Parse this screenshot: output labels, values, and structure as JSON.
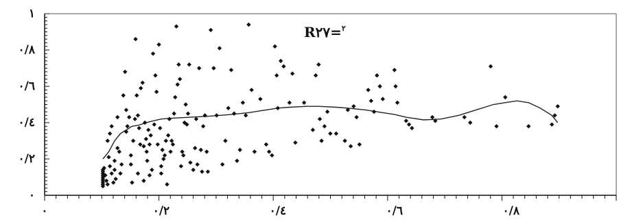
{
  "chart_data": {
    "type": "scatter",
    "title": "",
    "xlabel": "",
    "ylabel": "",
    "xlim": [
      0,
      1
    ],
    "ylim": [
      0,
      1
    ],
    "grid": false,
    "x_ticks": [
      {
        "value": 0,
        "label": "٠"
      },
      {
        "value": 0.2,
        "label": "٠/٢"
      },
      {
        "value": 0.4,
        "label": "٠/٤"
      },
      {
        "value": 0.6,
        "label": "٠/٦"
      },
      {
        "value": 0.8,
        "label": "٠/٨"
      }
    ],
    "y_ticks": [
      {
        "value": 0,
        "label": "٠"
      },
      {
        "value": 0.2,
        "label": "٠/٢"
      },
      {
        "value": 0.4,
        "label": "٠/٤"
      },
      {
        "value": 0.6,
        "label": "٠/٦"
      },
      {
        "value": 0.8,
        "label": "٠/٨"
      },
      {
        "value": 1,
        "label": "١"
      }
    ],
    "annotation": {
      "main": "R",
      "sup": "٢",
      "rest": "=٢٧"
    },
    "colors": {
      "points": "#111111",
      "trend": "#222222",
      "frame": "#555555"
    },
    "points": [
      [
        0.1,
        0.14
      ],
      [
        0.1,
        0.13
      ],
      [
        0.1,
        0.12
      ],
      [
        0.1,
        0.11
      ],
      [
        0.1,
        0.1
      ],
      [
        0.1,
        0.09
      ],
      [
        0.1,
        0.08
      ],
      [
        0.1,
        0.07
      ],
      [
        0.1,
        0.06
      ],
      [
        0.1,
        0.05
      ],
      [
        0.102,
        0.15
      ],
      [
        0.104,
        0.11
      ],
      [
        0.106,
        0.08
      ],
      [
        0.108,
        0.06
      ],
      [
        0.11,
        0.21
      ],
      [
        0.112,
        0.16
      ],
      [
        0.115,
        0.12
      ],
      [
        0.118,
        0.07
      ],
      [
        0.108,
        0.3
      ],
      [
        0.112,
        0.34
      ],
      [
        0.115,
        0.38
      ],
      [
        0.12,
        0.19
      ],
      [
        0.12,
        0.14
      ],
      [
        0.122,
        0.09
      ],
      [
        0.125,
        0.43
      ],
      [
        0.125,
        0.26
      ],
      [
        0.128,
        0.24
      ],
      [
        0.13,
        0.12
      ],
      [
        0.132,
        0.17
      ],
      [
        0.135,
        0.55
      ],
      [
        0.138,
        0.68
      ],
      [
        0.14,
        0.47
      ],
      [
        0.14,
        0.35
      ],
      [
        0.142,
        0.38
      ],
      [
        0.145,
        0.43
      ],
      [
        0.148,
        0.22
      ],
      [
        0.148,
        0.17
      ],
      [
        0.15,
        0.07
      ],
      [
        0.152,
        0.3
      ],
      [
        0.155,
        0.42
      ],
      [
        0.156,
        0.86
      ],
      [
        0.158,
        0.55
      ],
      [
        0.16,
        0.44
      ],
      [
        0.16,
        0.12
      ],
      [
        0.162,
        0.37
      ],
      [
        0.164,
        0.28
      ],
      [
        0.165,
        0.59
      ],
      [
        0.168,
        0.62
      ],
      [
        0.17,
        0.27
      ],
      [
        0.17,
        0.08
      ],
      [
        0.172,
        0.4
      ],
      [
        0.174,
        0.31
      ],
      [
        0.175,
        0.24
      ],
      [
        0.176,
        0.19
      ],
      [
        0.178,
        0.36
      ],
      [
        0.18,
        0.28
      ],
      [
        0.18,
        0.11
      ],
      [
        0.182,
        0.33
      ],
      [
        0.184,
        0.14
      ],
      [
        0.186,
        0.78
      ],
      [
        0.188,
        0.39
      ],
      [
        0.19,
        0.66
      ],
      [
        0.192,
        0.57
      ],
      [
        0.194,
        0.28
      ],
      [
        0.196,
        0.83
      ],
      [
        0.198,
        0.37
      ],
      [
        0.2,
        0.16
      ],
      [
        0.2,
        0.12
      ],
      [
        0.202,
        0.25
      ],
      [
        0.204,
        0.2
      ],
      [
        0.206,
        0.22
      ],
      [
        0.208,
        0.3
      ],
      [
        0.21,
        0.06
      ],
      [
        0.212,
        0.33
      ],
      [
        0.214,
        0.42
      ],
      [
        0.216,
        0.24
      ],
      [
        0.218,
        0.3
      ],
      [
        0.22,
        0.28
      ],
      [
        0.222,
        0.45
      ],
      [
        0.224,
        0.54
      ],
      [
        0.226,
        0.93
      ],
      [
        0.228,
        0.61
      ],
      [
        0.23,
        0.72
      ],
      [
        0.232,
        0.64
      ],
      [
        0.234,
        0.16
      ],
      [
        0.236,
        0.24
      ],
      [
        0.238,
        0.22
      ],
      [
        0.24,
        0.4
      ],
      [
        0.242,
        0.5
      ],
      [
        0.244,
        0.39
      ],
      [
        0.246,
        0.45
      ],
      [
        0.248,
        0.72
      ],
      [
        0.25,
        0.18
      ],
      [
        0.255,
        0.14
      ],
      [
        0.258,
        0.26
      ],
      [
        0.26,
        0.42
      ],
      [
        0.262,
        0.17
      ],
      [
        0.265,
        0.7
      ],
      [
        0.268,
        0.25
      ],
      [
        0.27,
        0.13
      ],
      [
        0.272,
        0.38
      ],
      [
        0.275,
        0.44
      ],
      [
        0.278,
        0.24
      ],
      [
        0.28,
        0.13
      ],
      [
        0.285,
        0.91
      ],
      [
        0.29,
        0.7
      ],
      [
        0.295,
        0.44
      ],
      [
        0.3,
        0.81
      ],
      [
        0.305,
        0.17
      ],
      [
        0.31,
        0.3
      ],
      [
        0.315,
        0.48
      ],
      [
        0.32,
        0.69
      ],
      [
        0.325,
        0.45
      ],
      [
        0.33,
        0.19
      ],
      [
        0.335,
        0.25
      ],
      [
        0.34,
        0.51
      ],
      [
        0.345,
        0.44
      ],
      [
        0.35,
        0.94
      ],
      [
        0.355,
        0.58
      ],
      [
        0.36,
        0.24
      ],
      [
        0.37,
        0.53
      ],
      [
        0.38,
        0.28
      ],
      [
        0.385,
        0.24
      ],
      [
        0.39,
        0.22
      ],
      [
        0.395,
        0.82
      ],
      [
        0.398,
        0.66
      ],
      [
        0.4,
        0.48
      ],
      [
        0.405,
        0.74
      ],
      [
        0.41,
        0.71
      ],
      [
        0.42,
        0.51
      ],
      [
        0.425,
        0.67
      ],
      [
        0.43,
        0.29
      ],
      [
        0.445,
        0.51
      ],
      [
        0.46,
        0.36
      ],
      [
        0.465,
        0.66
      ],
      [
        0.47,
        0.72
      ],
      [
        0.472,
        0.42
      ],
      [
        0.475,
        0.3
      ],
      [
        0.48,
        0.38
      ],
      [
        0.485,
        0.46
      ],
      [
        0.49,
        0.34
      ],
      [
        0.5,
        0.34
      ],
      [
        0.515,
        0.3
      ],
      [
        0.52,
        0.47
      ],
      [
        0.525,
        0.27
      ],
      [
        0.53,
        0.49
      ],
      [
        0.535,
        0.43
      ],
      [
        0.54,
        0.28
      ],
      [
        0.555,
        0.58
      ],
      [
        0.56,
        0.52
      ],
      [
        0.565,
        0.46
      ],
      [
        0.57,
        0.66
      ],
      [
        0.575,
        0.6
      ],
      [
        0.58,
        0.53
      ],
      [
        0.6,
        0.69
      ],
      [
        0.602,
        0.6
      ],
      [
        0.605,
        0.51
      ],
      [
        0.62,
        0.41
      ],
      [
        0.625,
        0.39
      ],
      [
        0.63,
        0.37
      ],
      [
        0.665,
        0.43
      ],
      [
        0.67,
        0.41
      ],
      [
        0.72,
        0.43
      ],
      [
        0.73,
        0.4
      ],
      [
        0.765,
        0.71
      ],
      [
        0.775,
        0.38
      ],
      [
        0.79,
        0.54
      ],
      [
        0.83,
        0.38
      ],
      [
        0.87,
        0.39
      ],
      [
        0.875,
        0.44
      ],
      [
        0.88,
        0.49
      ]
    ],
    "trend_line": [
      [
        0.1,
        0.2
      ],
      [
        0.11,
        0.24
      ],
      [
        0.12,
        0.3
      ],
      [
        0.13,
        0.34
      ],
      [
        0.14,
        0.36
      ],
      [
        0.15,
        0.38
      ],
      [
        0.16,
        0.385
      ],
      [
        0.17,
        0.395
      ],
      [
        0.18,
        0.405
      ],
      [
        0.2,
        0.42
      ],
      [
        0.22,
        0.425
      ],
      [
        0.25,
        0.43
      ],
      [
        0.28,
        0.435
      ],
      [
        0.3,
        0.44
      ],
      [
        0.32,
        0.445
      ],
      [
        0.35,
        0.455
      ],
      [
        0.38,
        0.47
      ],
      [
        0.4,
        0.48
      ],
      [
        0.42,
        0.485
      ],
      [
        0.45,
        0.49
      ],
      [
        0.47,
        0.49
      ],
      [
        0.5,
        0.485
      ],
      [
        0.52,
        0.48
      ],
      [
        0.55,
        0.47
      ],
      [
        0.58,
        0.455
      ],
      [
        0.6,
        0.445
      ],
      [
        0.62,
        0.43
      ],
      [
        0.65,
        0.415
      ],
      [
        0.68,
        0.42
      ],
      [
        0.71,
        0.44
      ],
      [
        0.74,
        0.47
      ],
      [
        0.77,
        0.5
      ],
      [
        0.79,
        0.51
      ],
      [
        0.81,
        0.52
      ],
      [
        0.83,
        0.51
      ],
      [
        0.85,
        0.48
      ],
      [
        0.87,
        0.44
      ],
      [
        0.88,
        0.4
      ]
    ]
  }
}
